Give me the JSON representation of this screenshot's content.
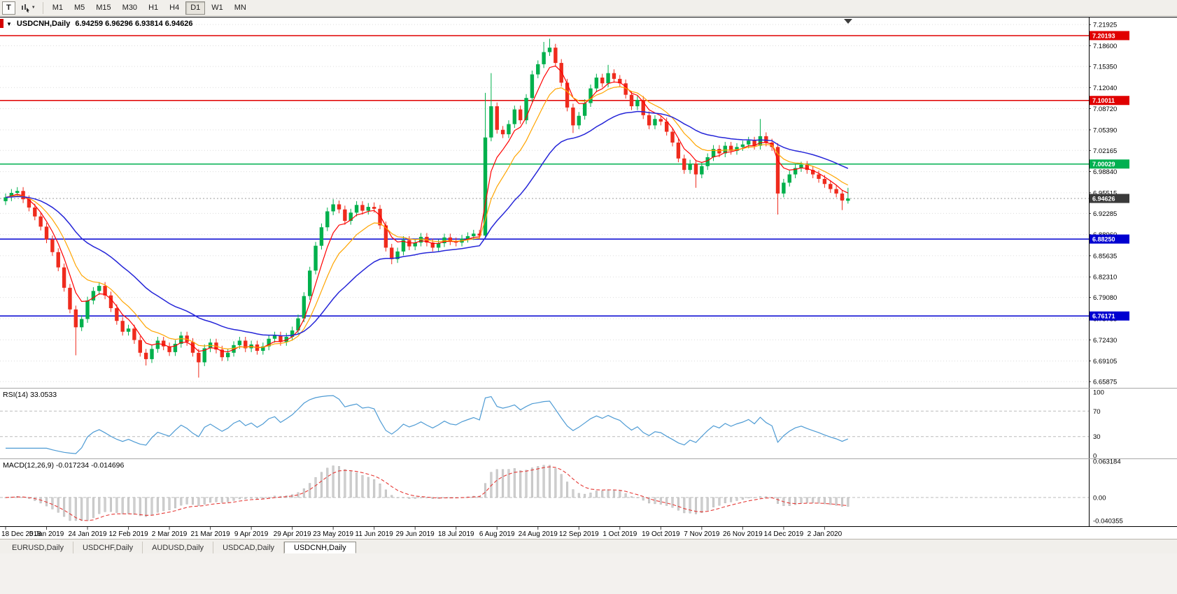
{
  "icons": {
    "collapse": "▼",
    "dropdown_caret": "▼"
  },
  "toolbar": {
    "templates_label": "T",
    "timeframes": [
      {
        "label": "M1",
        "active": false
      },
      {
        "label": "M5",
        "active": false
      },
      {
        "label": "M15",
        "active": false
      },
      {
        "label": "M30",
        "active": false
      },
      {
        "label": "H1",
        "active": false
      },
      {
        "label": "H4",
        "active": false
      },
      {
        "label": "D1",
        "active": true
      },
      {
        "label": "W1",
        "active": false
      },
      {
        "label": "MN",
        "active": false
      }
    ]
  },
  "chart": {
    "title": {
      "symbol": "USDCNH,Daily",
      "ohlc": "6.94259 6.96296 6.93814 6.94626"
    }
  },
  "chart_data": {
    "type": "candlestick",
    "symbol": "USDCNH",
    "timeframe": "Daily",
    "title": "USDCNH,Daily 6.94259 6.96296 6.93814 6.94626",
    "y_axis": {
      "max": 7.226,
      "min": 6.6533,
      "ticks": [
        "7.21925",
        "7.18600",
        "7.15350",
        "7.12040",
        "7.08720",
        "7.05390",
        "7.02165",
        "6.98840",
        "6.95515",
        "6.92285",
        "6.88960",
        "6.85635",
        "6.82310",
        "6.79080",
        "6.75755",
        "6.72430",
        "6.69105",
        "6.65875"
      ]
    },
    "x_labels": [
      "18 Dec 2018",
      "5 Jan 2019",
      "24 Jan 2019",
      "12 Feb 2019",
      "2 Mar 2019",
      "21 Mar 2019",
      "9 Apr 2019",
      "29 Apr 2019",
      "23 May 2019",
      "11 Jun 2019",
      "29 Jun 2019",
      "18 Jul 2019",
      "6 Aug 2019",
      "24 Aug 2019",
      "12 Sep 2019",
      "1 Oct 2019",
      "19 Oct 2019",
      "7 Nov 2019",
      "26 Nov 2019",
      "14 Dec 2019",
      "2 Jan 2020"
    ],
    "label_step": 7,
    "candles": [
      [
        6.942,
        6.954,
        6.936,
        6.948
      ],
      [
        6.948,
        6.961,
        6.942,
        6.955
      ],
      [
        6.955,
        6.964,
        6.949,
        6.958
      ],
      [
        6.958,
        6.964,
        6.939,
        6.945
      ],
      [
        6.945,
        6.951,
        6.926,
        6.932
      ],
      [
        6.932,
        6.938,
        6.912,
        6.918
      ],
      [
        6.918,
        6.924,
        6.896,
        6.902
      ],
      [
        6.902,
        6.908,
        6.876,
        6.882
      ],
      [
        6.882,
        6.888,
        6.856,
        6.862
      ],
      [
        6.862,
        6.868,
        6.832,
        6.838
      ],
      [
        6.838,
        6.844,
        6.8,
        6.806
      ],
      [
        6.806,
        6.812,
        6.766,
        6.772
      ],
      [
        6.772,
        6.778,
        6.7,
        6.744
      ],
      [
        6.744,
        6.763,
        6.738,
        6.757
      ],
      [
        6.757,
        6.792,
        6.751,
        6.786
      ],
      [
        6.786,
        6.807,
        6.78,
        6.801
      ],
      [
        6.801,
        6.815,
        6.795,
        6.809
      ],
      [
        6.809,
        6.815,
        6.788,
        6.794
      ],
      [
        6.794,
        6.8,
        6.768,
        6.774
      ],
      [
        6.774,
        6.78,
        6.748,
        6.754
      ],
      [
        6.754,
        6.76,
        6.731,
        6.737
      ],
      [
        6.737,
        6.748,
        6.731,
        6.742
      ],
      [
        6.742,
        6.748,
        6.718,
        6.724
      ],
      [
        6.724,
        6.73,
        6.698,
        6.704
      ],
      [
        6.704,
        6.71,
        6.684,
        6.694
      ],
      [
        6.694,
        6.716,
        6.688,
        6.71
      ],
      [
        6.71,
        6.729,
        6.704,
        6.723
      ],
      [
        6.723,
        6.729,
        6.708,
        6.714
      ],
      [
        6.714,
        6.72,
        6.699,
        6.705
      ],
      [
        6.705,
        6.724,
        6.699,
        6.718
      ],
      [
        6.718,
        6.737,
        6.712,
        6.731
      ],
      [
        6.731,
        6.737,
        6.715,
        6.721
      ],
      [
        6.721,
        6.727,
        6.698,
        6.704
      ],
      [
        6.704,
        6.71,
        6.665,
        6.689
      ],
      [
        6.689,
        6.717,
        6.683,
        6.711
      ],
      [
        6.711,
        6.726,
        6.705,
        6.72
      ],
      [
        6.72,
        6.726,
        6.703,
        6.709
      ],
      [
        6.709,
        6.715,
        6.691,
        6.697
      ],
      [
        6.697,
        6.71,
        6.691,
        6.704
      ],
      [
        6.704,
        6.722,
        6.698,
        6.716
      ],
      [
        6.716,
        6.729,
        6.71,
        6.723
      ],
      [
        6.723,
        6.729,
        6.705,
        6.711
      ],
      [
        6.711,
        6.723,
        6.705,
        6.717
      ],
      [
        6.717,
        6.723,
        6.701,
        6.707
      ],
      [
        6.707,
        6.72,
        6.701,
        6.714
      ],
      [
        6.714,
        6.732,
        6.708,
        6.726
      ],
      [
        6.726,
        6.737,
        6.72,
        6.731
      ],
      [
        6.731,
        6.737,
        6.715,
        6.721
      ],
      [
        6.721,
        6.735,
        6.715,
        6.729
      ],
      [
        6.729,
        6.745,
        6.723,
        6.739
      ],
      [
        6.739,
        6.764,
        6.733,
        6.758
      ],
      [
        6.758,
        6.799,
        6.752,
        6.793
      ],
      [
        6.793,
        6.839,
        6.787,
        6.833
      ],
      [
        6.833,
        6.878,
        6.827,
        6.872
      ],
      [
        6.872,
        6.907,
        6.866,
        6.901
      ],
      [
        6.901,
        6.932,
        6.895,
        6.926
      ],
      [
        6.926,
        6.945,
        6.92,
        6.937
      ],
      [
        6.937,
        6.943,
        6.923,
        6.929
      ],
      [
        6.929,
        6.935,
        6.905,
        6.911
      ],
      [
        6.911,
        6.93,
        6.905,
        6.924
      ],
      [
        6.924,
        6.942,
        6.918,
        6.936
      ],
      [
        6.936,
        6.942,
        6.921,
        6.927
      ],
      [
        6.927,
        6.939,
        6.921,
        6.933
      ],
      [
        6.933,
        6.94,
        6.924,
        6.93
      ],
      [
        6.93,
        6.936,
        6.898,
        6.904
      ],
      [
        6.904,
        6.91,
        6.863,
        6.869
      ],
      [
        6.869,
        6.875,
        6.843,
        6.851
      ],
      [
        6.851,
        6.869,
        6.845,
        6.863
      ],
      [
        6.863,
        6.887,
        6.857,
        6.881
      ],
      [
        6.881,
        6.887,
        6.865,
        6.871
      ],
      [
        6.871,
        6.883,
        6.865,
        6.877
      ],
      [
        6.877,
        6.892,
        6.871,
        6.886
      ],
      [
        6.886,
        6.892,
        6.871,
        6.877
      ],
      [
        6.877,
        6.883,
        6.863,
        6.869
      ],
      [
        6.869,
        6.882,
        6.863,
        6.876
      ],
      [
        6.876,
        6.891,
        6.87,
        6.885
      ],
      [
        6.885,
        6.891,
        6.873,
        6.879
      ],
      [
        6.879,
        6.885,
        6.871,
        6.877
      ],
      [
        6.877,
        6.889,
        6.871,
        6.883
      ],
      [
        6.883,
        6.893,
        6.877,
        6.887
      ],
      [
        6.887,
        6.897,
        6.881,
        6.891
      ],
      [
        6.891,
        6.897,
        6.882,
        6.888
      ],
      [
        6.888,
        7.112,
        6.884,
        7.042
      ],
      [
        7.042,
        7.143,
        7.036,
        7.091
      ],
      [
        7.091,
        7.097,
        7.048,
        7.054
      ],
      [
        7.054,
        7.06,
        7.041,
        7.047
      ],
      [
        7.047,
        7.069,
        7.041,
        7.063
      ],
      [
        7.063,
        7.092,
        7.057,
        7.086
      ],
      [
        7.086,
        7.092,
        7.063,
        7.069
      ],
      [
        7.069,
        7.11,
        7.063,
        7.104
      ],
      [
        7.104,
        7.147,
        7.098,
        7.141
      ],
      [
        7.141,
        7.163,
        7.135,
        7.157
      ],
      [
        7.157,
        7.192,
        7.151,
        7.176
      ],
      [
        7.176,
        7.197,
        7.17,
        7.183
      ],
      [
        7.183,
        7.189,
        7.153,
        7.159
      ],
      [
        7.159,
        7.165,
        7.122,
        7.128
      ],
      [
        7.128,
        7.134,
        7.083,
        7.089
      ],
      [
        7.089,
        7.095,
        7.049,
        7.061
      ],
      [
        7.061,
        7.082,
        7.055,
        7.076
      ],
      [
        7.076,
        7.102,
        7.07,
        7.096
      ],
      [
        7.096,
        7.125,
        7.09,
        7.119
      ],
      [
        7.119,
        7.142,
        7.113,
        7.136
      ],
      [
        7.136,
        7.142,
        7.121,
        7.127
      ],
      [
        7.127,
        7.156,
        7.121,
        7.143
      ],
      [
        7.143,
        7.149,
        7.128,
        7.134
      ],
      [
        7.134,
        7.14,
        7.121,
        7.127
      ],
      [
        7.127,
        7.133,
        7.103,
        7.109
      ],
      [
        7.109,
        7.115,
        7.085,
        7.091
      ],
      [
        7.091,
        7.107,
        7.085,
        7.101
      ],
      [
        7.101,
        7.107,
        7.071,
        7.077
      ],
      [
        7.077,
        7.083,
        7.055,
        7.061
      ],
      [
        7.061,
        7.077,
        7.055,
        7.071
      ],
      [
        7.071,
        7.077,
        7.061,
        7.067
      ],
      [
        7.067,
        7.073,
        7.045,
        7.051
      ],
      [
        7.051,
        7.057,
        7.028,
        7.034
      ],
      [
        7.034,
        7.04,
        7.003,
        7.009
      ],
      [
        7.009,
        7.015,
        6.985,
        6.991
      ],
      [
        6.991,
        7.007,
        6.985,
        7.001
      ],
      [
        7.001,
        7.007,
        6.963,
        6.984
      ],
      [
        6.984,
        7.003,
        6.978,
        6.997
      ],
      [
        6.997,
        7.017,
        6.991,
        7.011
      ],
      [
        7.011,
        7.03,
        7.005,
        7.024
      ],
      [
        7.024,
        7.03,
        7.011,
        7.017
      ],
      [
        7.017,
        7.035,
        7.011,
        7.029
      ],
      [
        7.029,
        7.035,
        7.015,
        7.021
      ],
      [
        7.021,
        7.033,
        7.015,
        7.027
      ],
      [
        7.027,
        7.037,
        7.021,
        7.031
      ],
      [
        7.031,
        7.043,
        7.025,
        7.037
      ],
      [
        7.037,
        7.043,
        7.023,
        7.029
      ],
      [
        7.029,
        7.071,
        7.023,
        7.044
      ],
      [
        7.044,
        7.05,
        7.028,
        7.034
      ],
      [
        7.034,
        7.04,
        7.021,
        7.027
      ],
      [
        7.027,
        7.033,
        6.921,
        6.954
      ],
      [
        6.954,
        6.977,
        6.948,
        6.971
      ],
      [
        6.971,
        6.99,
        6.965,
        6.984
      ],
      [
        6.984,
        7.0,
        6.978,
        6.994
      ],
      [
        6.994,
        7.004,
        6.988,
        6.999
      ],
      [
        6.999,
        7.005,
        6.985,
        6.991
      ],
      [
        6.991,
        6.997,
        6.978,
        6.984
      ],
      [
        6.984,
        6.99,
        6.971,
        6.977
      ],
      [
        6.977,
        6.983,
        6.963,
        6.969
      ],
      [
        6.969,
        6.975,
        6.955,
        6.961
      ],
      [
        6.961,
        6.967,
        6.948,
        6.954
      ],
      [
        6.954,
        6.96,
        6.928,
        6.943
      ],
      [
        6.94259,
        6.96296,
        6.93814,
        6.94626
      ]
    ],
    "horizontal_lines": [
      {
        "price": 7.20193,
        "label": "7.20193",
        "color": "#e00000"
      },
      {
        "price": 7.10011,
        "label": "7.10011",
        "color": "#e00000"
      },
      {
        "price": 7.00029,
        "label": "7.00029",
        "color": "#00b050"
      },
      {
        "price": 6.8825,
        "label": "6.88250",
        "color": "#0000d0"
      },
      {
        "price": 6.76171,
        "label": "6.76171",
        "color": "#0000d0"
      }
    ],
    "current_price": {
      "value": 6.94626,
      "label": "6.94626",
      "tag_color": "#3a3a3a"
    },
    "colors": {
      "up": "#00b04c",
      "down": "#ef2b1d",
      "grid": "#dcdcdc",
      "frame": "#000000"
    },
    "moving_averages": [
      {
        "name": "fast-ma",
        "color": "#ff0000",
        "render_period": 5,
        "width": 1.2
      },
      {
        "name": "mid-ma",
        "color": "#ffa500",
        "render_period": 10,
        "width": 1.2
      },
      {
        "name": "slow-ma",
        "color": "#2525d8",
        "render_period": 26,
        "width": 1.5
      }
    ],
    "indicators": {
      "rsi": {
        "label": "RSI(14) 33.0533",
        "value": "33.0533",
        "render_period": 7,
        "color": "#4e9bd4",
        "levels": [
          70,
          30
        ],
        "axis_labels": [
          "100",
          "70",
          "30",
          "0"
        ],
        "range": [
          0,
          100
        ]
      },
      "macd": {
        "label": "MACD(12,26,9) -0.017234 -0.014696",
        "values": "-0.017234 -0.014696",
        "render_fast": 6,
        "render_slow": 13,
        "render_signal": 5,
        "hist_color": "#cfcfcf",
        "hist_stroke": "#ababab",
        "signal_color": "#e53935",
        "axis_labels": [
          "0.063184",
          "0.00",
          "-0.040355"
        ],
        "axis_max": 0.063184,
        "axis_min": -0.040355
      }
    }
  },
  "tabs": [
    {
      "label": "EURUSD,Daily",
      "active": false
    },
    {
      "label": "USDCHF,Daily",
      "active": false
    },
    {
      "label": "AUDUSD,Daily",
      "active": false
    },
    {
      "label": "USDCAD,Daily",
      "active": false
    },
    {
      "label": "USDCNH,Daily",
      "active": true
    }
  ]
}
